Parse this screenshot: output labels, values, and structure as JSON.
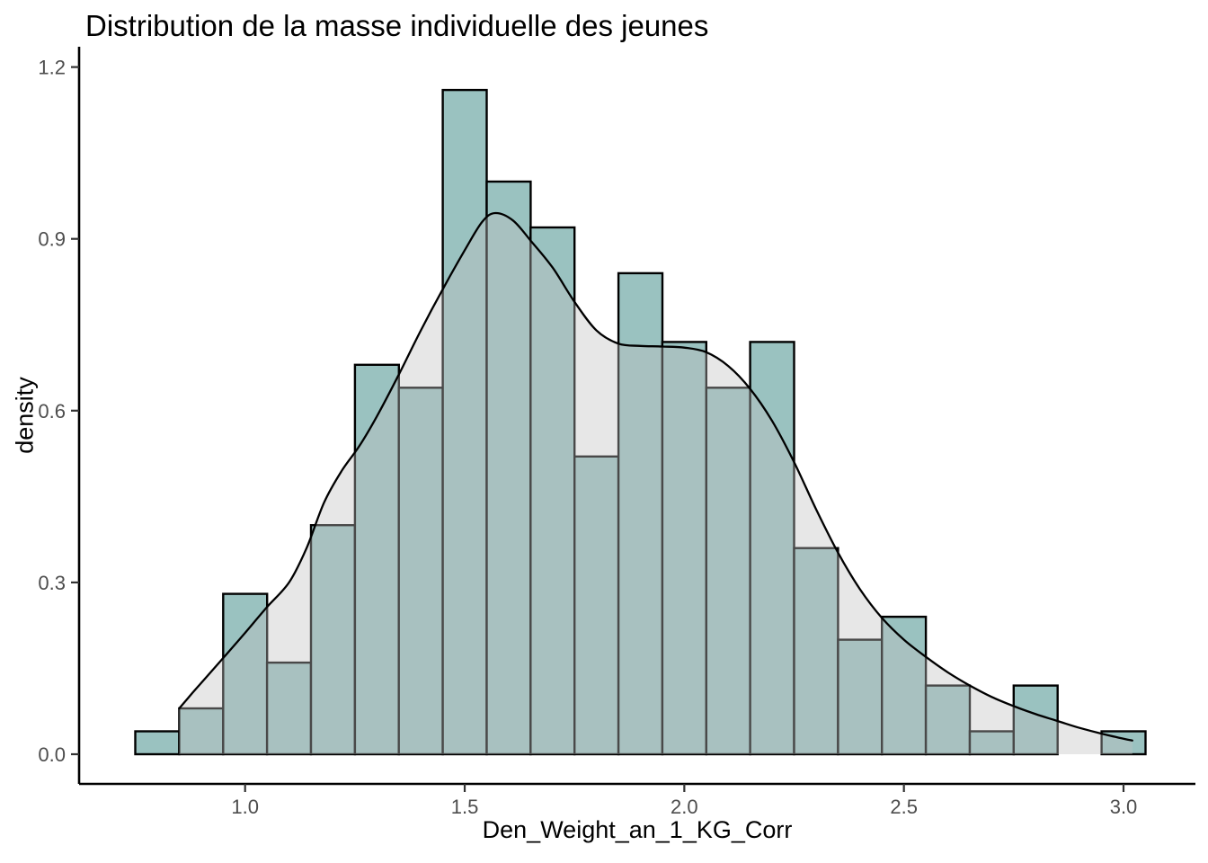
{
  "title": "Distribution de la masse individuelle des jeunes",
  "x_axis": {
    "label": "Den_Weight_an_1_KG_Corr",
    "tick_values": [
      1.0,
      1.5,
      2.0,
      2.5,
      3.0
    ],
    "tick_labels": [
      "1.0",
      "1.5",
      "2.0",
      "2.5",
      "3.0"
    ]
  },
  "y_axis": {
    "label": "density",
    "tick_values": [
      0.0,
      0.3,
      0.6,
      0.9,
      1.2
    ],
    "tick_labels": [
      "0.0",
      "0.3",
      "0.6",
      "0.9",
      "1.2"
    ]
  },
  "colors": {
    "background": "#ffffff",
    "bar_fill": "#9ac2c0",
    "bar_border": "#000000",
    "density_fill": "#c0c0c0",
    "density_fill_opacity": 0.38,
    "density_line": "#000000",
    "axis_line": "#000000",
    "tick_mark": "#333333",
    "tick_label": "#4d4d4d",
    "title_color": "#000000"
  },
  "chart_data": {
    "type": "bar",
    "subtype": "histogram_with_density",
    "title": "Distribution de la masse individuelle des jeunes",
    "xlabel": "Den_Weight_an_1_KG_Corr",
    "ylabel": "density",
    "xlim": [
      0.7,
      3.1
    ],
    "ylim": [
      0.0,
      1.2
    ],
    "grid": false,
    "legend": false,
    "bin_start": 0.75,
    "bin_width": 0.1,
    "bin_centers": [
      0.8,
      0.9,
      1.0,
      1.1,
      1.2,
      1.3,
      1.4,
      1.5,
      1.6,
      1.7,
      1.8,
      1.9,
      2.0,
      2.1,
      2.2,
      2.3,
      2.4,
      2.5,
      2.6,
      2.7,
      2.8,
      2.9,
      3.0
    ],
    "densities": [
      0.04,
      0.08,
      0.28,
      0.16,
      0.4,
      0.68,
      0.64,
      1.16,
      1.0,
      0.92,
      0.52,
      0.84,
      0.72,
      0.64,
      0.72,
      0.36,
      0.2,
      0.24,
      0.12,
      0.04,
      0.12,
      0.0,
      0.04
    ],
    "density_curve": [
      [
        0.85,
        0.08
      ],
      [
        0.88,
        0.107
      ],
      [
        0.91,
        0.133
      ],
      [
        0.95,
        0.168
      ],
      [
        1.0,
        0.212
      ],
      [
        1.05,
        0.257
      ],
      [
        1.1,
        0.3
      ],
      [
        1.14,
        0.36
      ],
      [
        1.18,
        0.44
      ],
      [
        1.22,
        0.495
      ],
      [
        1.26,
        0.538
      ],
      [
        1.3,
        0.59
      ],
      [
        1.35,
        0.663
      ],
      [
        1.4,
        0.74
      ],
      [
        1.45,
        0.812
      ],
      [
        1.5,
        0.88
      ],
      [
        1.54,
        0.93
      ],
      [
        1.57,
        0.945
      ],
      [
        1.61,
        0.932
      ],
      [
        1.65,
        0.897
      ],
      [
        1.7,
        0.85
      ],
      [
        1.75,
        0.79
      ],
      [
        1.8,
        0.74
      ],
      [
        1.85,
        0.717
      ],
      [
        1.9,
        0.713
      ],
      [
        1.95,
        0.712
      ],
      [
        2.0,
        0.71
      ],
      [
        2.05,
        0.702
      ],
      [
        2.1,
        0.678
      ],
      [
        2.15,
        0.638
      ],
      [
        2.2,
        0.582
      ],
      [
        2.25,
        0.51
      ],
      [
        2.3,
        0.428
      ],
      [
        2.35,
        0.352
      ],
      [
        2.4,
        0.288
      ],
      [
        2.45,
        0.238
      ],
      [
        2.5,
        0.2
      ],
      [
        2.55,
        0.17
      ],
      [
        2.6,
        0.143
      ],
      [
        2.65,
        0.12
      ],
      [
        2.7,
        0.1
      ],
      [
        2.75,
        0.084
      ],
      [
        2.8,
        0.07
      ],
      [
        2.85,
        0.058
      ],
      [
        2.9,
        0.046
      ],
      [
        2.95,
        0.036
      ],
      [
        3.0,
        0.027
      ],
      [
        3.02,
        0.024
      ]
    ]
  }
}
